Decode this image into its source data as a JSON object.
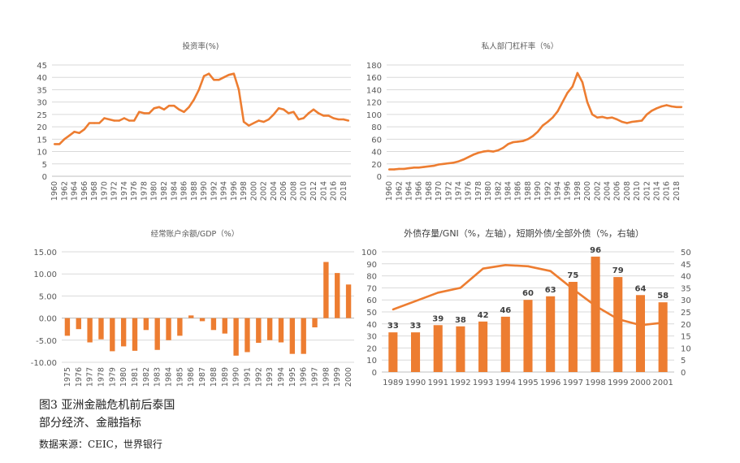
{
  "chart_data": [
    {
      "type": "line",
      "title": "投资率(%)",
      "x": [
        "1960",
        "1961",
        "1962",
        "1963",
        "1964",
        "1965",
        "1966",
        "1967",
        "1968",
        "1969",
        "1970",
        "1971",
        "1972",
        "1973",
        "1974",
        "1975",
        "1976",
        "1977",
        "1978",
        "1979",
        "1980",
        "1981",
        "1982",
        "1983",
        "1984",
        "1985",
        "1986",
        "1987",
        "1988",
        "1989",
        "1990",
        "1991",
        "1992",
        "1993",
        "1994",
        "1995",
        "1996",
        "1997",
        "1998",
        "1999",
        "2000",
        "2001",
        "2002",
        "2003",
        "2004",
        "2005",
        "2006",
        "2007",
        "2008",
        "2009",
        "2010",
        "2011",
        "2012",
        "2013",
        "2014",
        "2015",
        "2016",
        "2017",
        "2018",
        "2019"
      ],
      "x_tick_labels": [
        "1960",
        "1962",
        "1964",
        "1966",
        "1968",
        "1970",
        "1972",
        "1974",
        "1976",
        "1978",
        "1980",
        "1982",
        "1984",
        "1986",
        "1988",
        "1990",
        "1992",
        "1994",
        "1996",
        "1998",
        "2000",
        "2002",
        "2004",
        "2006",
        "2008",
        "2010",
        "2012",
        "2014",
        "2016",
        "2018"
      ],
      "values": [
        13,
        13,
        15,
        16.5,
        18,
        17.5,
        19,
        21.5,
        21.5,
        21.5,
        23.5,
        23,
        22.5,
        22.5,
        23.5,
        22.5,
        22.5,
        26,
        25.5,
        25.5,
        27.5,
        28,
        27,
        28.5,
        28.5,
        27,
        26,
        28,
        31,
        35,
        40.5,
        41.5,
        39,
        39,
        40,
        41,
        41.5,
        35,
        22,
        20.5,
        21.5,
        22.5,
        22,
        23,
        25,
        27.5,
        27,
        25.5,
        26,
        23,
        23.5,
        25.5,
        27,
        25.5,
        24.5,
        24.5,
        23.5,
        23,
        23,
        22.5
      ],
      "ylim": [
        0,
        45
      ],
      "y_ticks": [
        "0",
        "5",
        "10",
        "15",
        "20",
        "25",
        "30",
        "35",
        "40",
        "45"
      ],
      "color": "#ED7D31"
    },
    {
      "type": "line",
      "title": "私人部门杠杆率（%）",
      "x": [
        "1960",
        "1961",
        "1962",
        "1963",
        "1964",
        "1965",
        "1966",
        "1967",
        "1968",
        "1969",
        "1970",
        "1971",
        "1972",
        "1973",
        "1974",
        "1975",
        "1976",
        "1977",
        "1978",
        "1979",
        "1980",
        "1981",
        "1982",
        "1983",
        "1984",
        "1985",
        "1986",
        "1987",
        "1988",
        "1989",
        "1990",
        "1991",
        "1992",
        "1993",
        "1994",
        "1995",
        "1996",
        "1997",
        "1998",
        "1999",
        "2000",
        "2001",
        "2002",
        "2003",
        "2004",
        "2005",
        "2006",
        "2007",
        "2008",
        "2009",
        "2010",
        "2011",
        "2012",
        "2013",
        "2014",
        "2015",
        "2016",
        "2017",
        "2018",
        "2019"
      ],
      "x_tick_labels": [
        "1960",
        "1962",
        "1964",
        "1966",
        "1968",
        "1970",
        "1972",
        "1974",
        "1976",
        "1978",
        "1980",
        "1982",
        "1984",
        "1986",
        "1988",
        "1990",
        "1992",
        "1994",
        "1996",
        "1998",
        "2000",
        "2002",
        "2004",
        "2006",
        "2008",
        "2010",
        "2012",
        "2014",
        "2016",
        "2018"
      ],
      "values": [
        11,
        11,
        12,
        12,
        13,
        14,
        14,
        15,
        16,
        17,
        19,
        20,
        21,
        22,
        24,
        27,
        31,
        35,
        38,
        40,
        41,
        40,
        42,
        46,
        52,
        55,
        56,
        57,
        60,
        65,
        72,
        82,
        88,
        95,
        105,
        120,
        135,
        145,
        167,
        152,
        120,
        100,
        95,
        96,
        94,
        95,
        92,
        88,
        86,
        88,
        89,
        90,
        100,
        106,
        110,
        113,
        115,
        113,
        112,
        112
      ],
      "ylim": [
        0,
        180
      ],
      "y_ticks": [
        "0",
        "20",
        "40",
        "60",
        "80",
        "100",
        "120",
        "140",
        "160",
        "180"
      ],
      "color": "#ED7D31"
    },
    {
      "type": "bar",
      "title": "经常账户余额/GDP（%）",
      "categories": [
        "1975",
        "1976",
        "1977",
        "1978",
        "1979",
        "1980",
        "1981",
        "1982",
        "1983",
        "1984",
        "1985",
        "1986",
        "1987",
        "1988",
        "1989",
        "1990",
        "1991",
        "1992",
        "1993",
        "1994",
        "1995",
        "1996",
        "1997",
        "1998",
        "1999",
        "2000"
      ],
      "values": [
        -4,
        -2.5,
        -5.5,
        -4.8,
        -7.5,
        -6.4,
        -7.4,
        -2.7,
        -7.2,
        -5,
        -4,
        0.6,
        -0.7,
        -2.7,
        -3.5,
        -8.5,
        -7.7,
        -5.6,
        -5,
        -5.5,
        -8.1,
        -8.1,
        -2.1,
        12.7,
        10.2,
        7.6
      ],
      "ylim": [
        -10,
        15
      ],
      "y_ticks": [
        "-10.00",
        "-5.00",
        "0.00",
        "5.00",
        "10.00",
        "15.00"
      ],
      "color": "#ED7D31"
    },
    {
      "type": "bar",
      "title": "外债存量/GNI（%，左轴），短期外债/全部外债（%，右轴）",
      "categories": [
        "1989",
        "1990",
        "1991",
        "1992",
        "1993",
        "1994",
        "1995",
        "1996",
        "1997",
        "1998",
        "1999",
        "2000",
        "2001"
      ],
      "series": [
        {
          "type": "bar",
          "axis": "left",
          "values": [
            33,
            33,
            39,
            38,
            42,
            46,
            60,
            63,
            75,
            96,
            79,
            64,
            58
          ],
          "labels": [
            "33",
            "33",
            "39",
            "38",
            "42",
            "46",
            "60",
            "63",
            "75",
            "96",
            "79",
            "64",
            "58"
          ]
        },
        {
          "type": "line",
          "axis": "right",
          "values": [
            26,
            29.5,
            33,
            35,
            43,
            44.5,
            44,
            42,
            34.5,
            27.5,
            22,
            19.5,
            20.5
          ]
        }
      ],
      "ylim_left": [
        0,
        100
      ],
      "y_ticks_left": [
        "0",
        "10",
        "20",
        "30",
        "40",
        "50",
        "60",
        "70",
        "80",
        "90",
        "100"
      ],
      "ylim_right": [
        0,
        50
      ],
      "y_ticks_right": [
        "0",
        "5",
        "10",
        "15",
        "20",
        "25",
        "30",
        "35",
        "40",
        "45",
        "50"
      ],
      "color": "#ED7D31"
    }
  ],
  "caption": {
    "line1": "图3   亚洲金融危机前后泰国",
    "line2": "部分经济、金融指标",
    "source": "数据来源：CEIC，世界银行"
  },
  "colors": {
    "series": "#ED7D31",
    "grid": "#D9D9D9",
    "axis": "#BFBFBF",
    "text": "#595959"
  }
}
